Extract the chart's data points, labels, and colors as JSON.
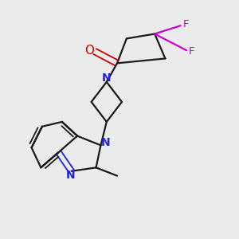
{
  "background_color": "#ebebeb",
  "bond_color": "#1a1a1a",
  "N_color": "#2020dd",
  "O_color": "#cc0000",
  "F_color": "#cc00cc",
  "figsize": [
    3.0,
    3.0
  ],
  "dpi": 100,
  "xlim": [
    0.0,
    1.0
  ],
  "ylim": [
    0.0,
    1.0
  ]
}
